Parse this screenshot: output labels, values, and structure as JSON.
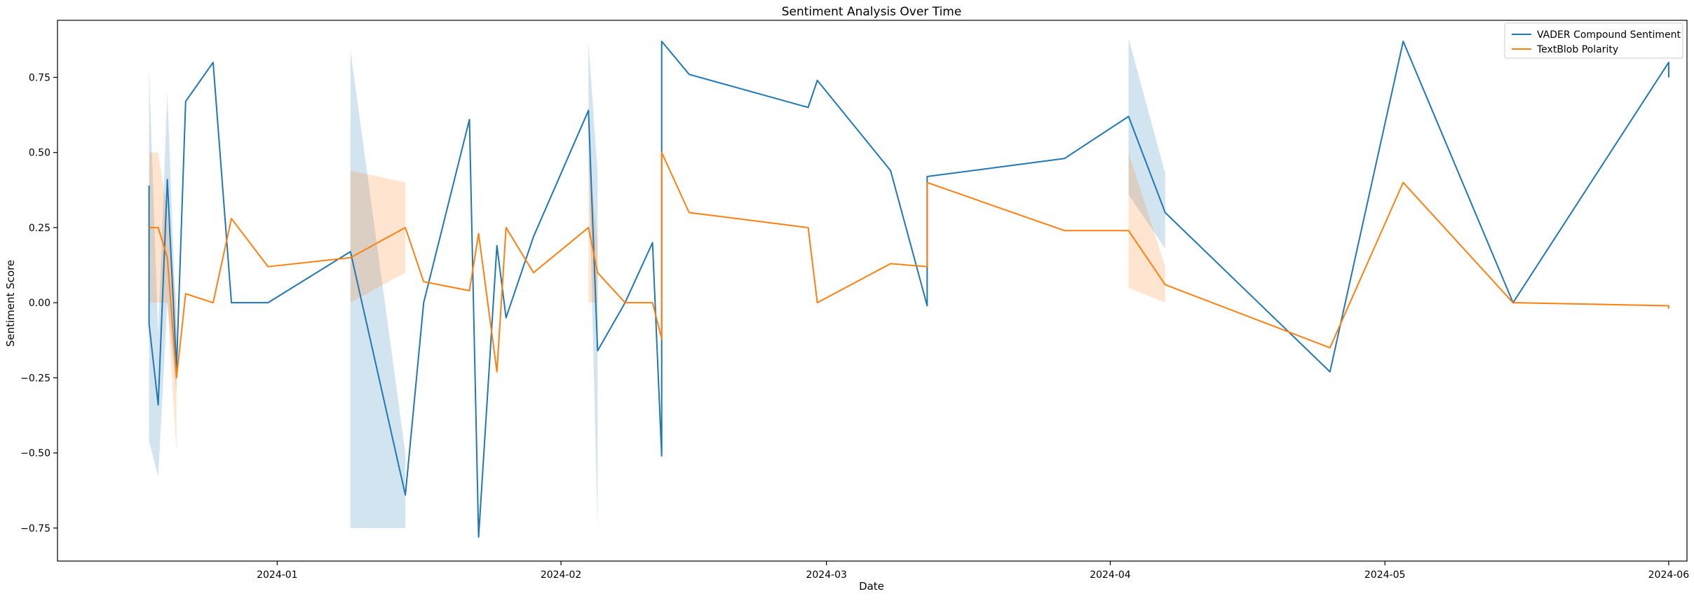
{
  "chart_data": {
    "type": "line",
    "title": "Sentiment Analysis Over Time",
    "xlabel": "Date",
    "ylabel": "Sentiment Score",
    "x_axis": "date",
    "xlim": [
      "2023-12-08",
      "2024-06-03"
    ],
    "ylim": [
      -0.86,
      0.94
    ],
    "x_ticks": [
      "2024-01-01",
      "2024-02-01",
      "2024-03-01",
      "2024-04-01",
      "2024-05-01",
      "2024-06-01"
    ],
    "x_tick_labels": [
      "2024-01",
      "2024-02",
      "2024-03",
      "2024-04",
      "2024-05",
      "2024-06"
    ],
    "y_ticks": [
      -0.75,
      -0.5,
      -0.25,
      0.0,
      0.25,
      0.5,
      0.75
    ],
    "y_tick_labels": [
      "−0.75",
      "−0.50",
      "−0.25",
      "0.00",
      "0.25",
      "0.50",
      "0.75"
    ],
    "grid": false,
    "legend_position": "top-right",
    "series": [
      {
        "name": "VADER Compound Sentiment",
        "color": "#1f77b4",
        "points": [
          [
            "2023-12-18",
            0.39
          ],
          [
            "2023-12-18",
            -0.07
          ],
          [
            "2023-12-19",
            -0.34
          ],
          [
            "2023-12-20",
            0.41
          ],
          [
            "2023-12-21",
            -0.22
          ],
          [
            "2023-12-22",
            0.67
          ],
          [
            "2023-12-25",
            0.8
          ],
          [
            "2023-12-27",
            0.0
          ],
          [
            "2023-12-31",
            0.0
          ],
          [
            "2024-01-09",
            0.17
          ],
          [
            "2024-01-15",
            -0.64
          ],
          [
            "2024-01-17",
            0.0
          ],
          [
            "2024-01-22",
            0.61
          ],
          [
            "2024-01-23",
            -0.78
          ],
          [
            "2024-01-25",
            0.19
          ],
          [
            "2024-01-26",
            -0.05
          ],
          [
            "2024-01-29",
            0.22
          ],
          [
            "2024-02-04",
            0.64
          ],
          [
            "2024-02-05",
            -0.16
          ],
          [
            "2024-02-08",
            0.0
          ],
          [
            "2024-02-11",
            0.2
          ],
          [
            "2024-02-12",
            -0.51
          ],
          [
            "2024-02-12",
            0.87
          ],
          [
            "2024-02-15",
            0.76
          ],
          [
            "2024-02-28",
            0.65
          ],
          [
            "2024-02-29",
            0.74
          ],
          [
            "2024-03-08",
            0.44
          ],
          [
            "2024-03-12",
            -0.01
          ],
          [
            "2024-03-12",
            0.42
          ],
          [
            "2024-03-27",
            0.48
          ],
          [
            "2024-04-03",
            0.62
          ],
          [
            "2024-04-07",
            0.3
          ],
          [
            "2024-04-25",
            -0.23
          ],
          [
            "2024-05-03",
            0.87
          ],
          [
            "2024-05-15",
            0.0
          ],
          [
            "2024-06-01",
            0.8
          ],
          [
            "2024-06-01",
            0.75
          ]
        ],
        "bands": [
          {
            "x": "2023-12-18",
            "lo": -0.46,
            "hi": 0.78
          },
          {
            "x": "2023-12-19",
            "lo": -0.58,
            "hi": -0.1
          },
          {
            "x": "2023-12-20",
            "lo": 0.0,
            "hi": 0.7
          },
          {
            "x": "2023-12-21",
            "lo": -0.3,
            "hi": -0.1
          },
          {
            "x": "2024-01-09",
            "lo": -0.75,
            "hi": 0.84
          },
          {
            "x": "2024-01-15",
            "lo": -0.75,
            "hi": -0.5
          },
          {
            "x": "2024-02-04",
            "lo": 0.5,
            "hi": 0.87
          },
          {
            "x": "2024-02-05",
            "lo": -0.75,
            "hi": 0.43
          },
          {
            "x": "2024-04-03",
            "lo": 0.36,
            "hi": 0.88
          },
          {
            "x": "2024-04-07",
            "lo": 0.18,
            "hi": 0.43
          }
        ]
      },
      {
        "name": "TextBlob Polarity",
        "color": "#ff7f0e",
        "points": [
          [
            "2023-12-18",
            0.25
          ],
          [
            "2023-12-19",
            0.25
          ],
          [
            "2023-12-20",
            0.15
          ],
          [
            "2023-12-21",
            -0.25
          ],
          [
            "2023-12-22",
            0.03
          ],
          [
            "2023-12-25",
            0.0
          ],
          [
            "2023-12-27",
            0.28
          ],
          [
            "2023-12-31",
            0.12
          ],
          [
            "2024-01-09",
            0.15
          ],
          [
            "2024-01-15",
            0.25
          ],
          [
            "2024-01-17",
            0.07
          ],
          [
            "2024-01-22",
            0.04
          ],
          [
            "2024-01-23",
            0.23
          ],
          [
            "2024-01-25",
            -0.23
          ],
          [
            "2024-01-26",
            0.25
          ],
          [
            "2024-01-29",
            0.1
          ],
          [
            "2024-02-04",
            0.25
          ],
          [
            "2024-02-05",
            0.1
          ],
          [
            "2024-02-08",
            0.0
          ],
          [
            "2024-02-11",
            0.0
          ],
          [
            "2024-02-12",
            -0.12
          ],
          [
            "2024-02-12",
            0.5
          ],
          [
            "2024-02-15",
            0.3
          ],
          [
            "2024-02-28",
            0.25
          ],
          [
            "2024-02-29",
            0.0
          ],
          [
            "2024-03-08",
            0.13
          ],
          [
            "2024-03-12",
            0.12
          ],
          [
            "2024-03-12",
            0.4
          ],
          [
            "2024-03-27",
            0.24
          ],
          [
            "2024-04-03",
            0.24
          ],
          [
            "2024-04-07",
            0.06
          ],
          [
            "2024-04-25",
            -0.15
          ],
          [
            "2024-05-03",
            0.4
          ],
          [
            "2024-05-15",
            0.0
          ],
          [
            "2024-06-01",
            -0.01
          ],
          [
            "2024-06-01",
            -0.02
          ]
        ],
        "bands": [
          {
            "x": "2023-12-18",
            "lo": 0.0,
            "hi": 0.5
          },
          {
            "x": "2023-12-19",
            "lo": 0.0,
            "hi": 0.5
          },
          {
            "x": "2023-12-20",
            "lo": 0.0,
            "hi": 0.3
          },
          {
            "x": "2023-12-21",
            "lo": -0.5,
            "hi": 0.0
          },
          {
            "x": "2024-01-09",
            "lo": 0.0,
            "hi": 0.44
          },
          {
            "x": "2024-01-15",
            "lo": 0.1,
            "hi": 0.4
          },
          {
            "x": "2024-02-04",
            "lo": 0.0,
            "hi": 0.5
          },
          {
            "x": "2024-02-05",
            "lo": 0.0,
            "hi": 0.2
          },
          {
            "x": "2024-04-03",
            "lo": 0.05,
            "hi": 0.5
          },
          {
            "x": "2024-04-07",
            "lo": 0.0,
            "hi": 0.12
          }
        ]
      }
    ]
  }
}
